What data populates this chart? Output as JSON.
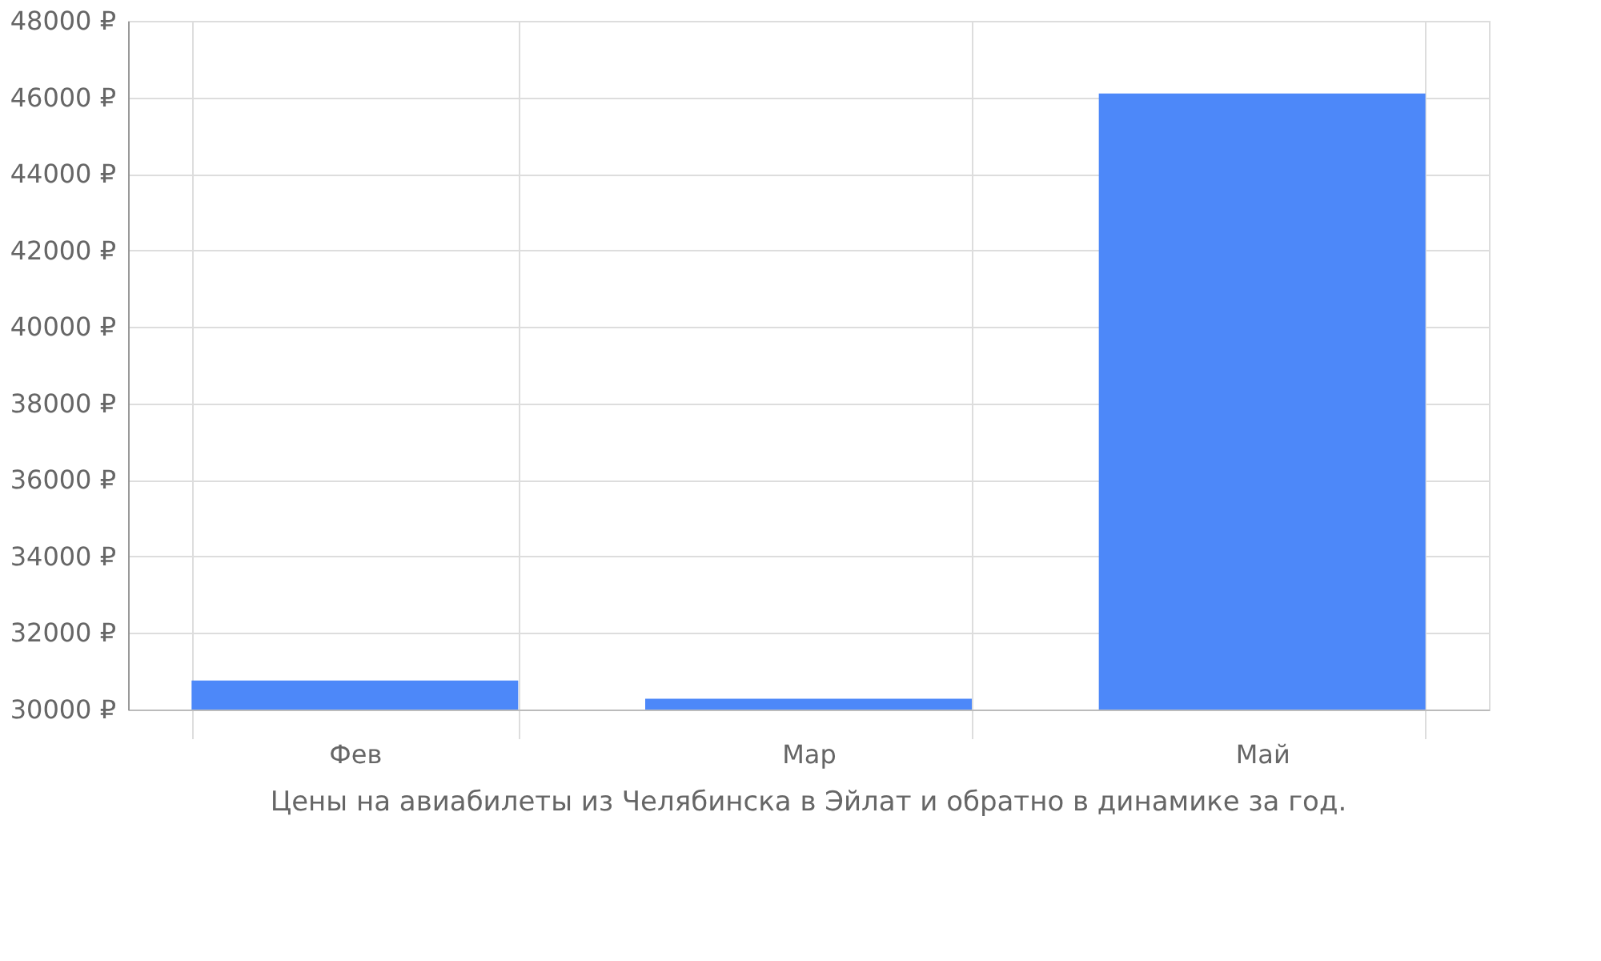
{
  "chart_data": {
    "type": "bar",
    "categories": [
      "Фев",
      "Мар",
      "Май"
    ],
    "values": [
      30760,
      30280,
      46100
    ],
    "color": "#4d88f9",
    "ylim": [
      30000,
      48000
    ],
    "yticks": [
      {
        "value": 30000,
        "label": "30000 ₽"
      },
      {
        "value": 32000,
        "label": "32000 ₽"
      },
      {
        "value": 34000,
        "label": "34000 ₽"
      },
      {
        "value": 36000,
        "label": "36000 ₽"
      },
      {
        "value": 38000,
        "label": "38000 ₽"
      },
      {
        "value": 40000,
        "label": "40000 ₽"
      },
      {
        "value": 42000,
        "label": "42000 ₽"
      },
      {
        "value": 44000,
        "label": "44000 ₽"
      },
      {
        "value": 46000,
        "label": "46000 ₽"
      },
      {
        "value": 48000,
        "label": "48000 ₽"
      }
    ],
    "grid": true,
    "annotations": [
      "Цены на авиабилеты из Челябинска в Эйлат и обратно в динамике за год."
    ]
  }
}
